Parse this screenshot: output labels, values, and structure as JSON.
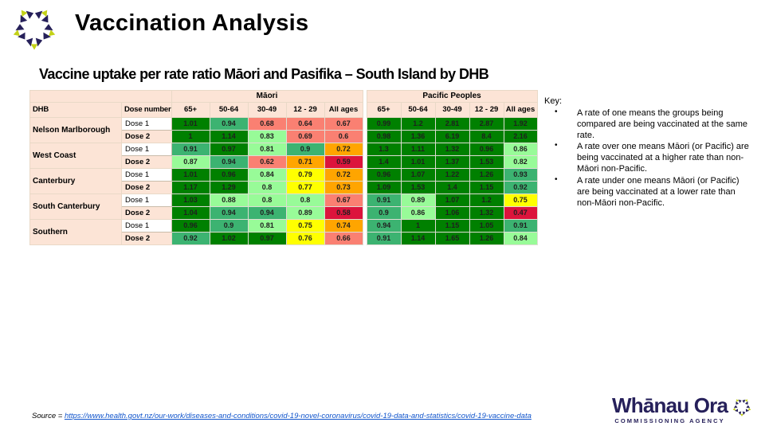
{
  "slide": {
    "title": "Vaccination Analysis",
    "subtitle": "Vaccine uptake per rate ratio Māori and Pasifika – South Island by DHB"
  },
  "chart_data": {
    "type": "heatmap",
    "title": "Vaccine uptake per rate ratio Māori and Pasifika – South Island by DHB",
    "dhb_header": "DHB",
    "dose_header": "Dose number",
    "age_headers": [
      "65+",
      "50-64",
      "30-49",
      "12 - 29",
      "All ages"
    ],
    "groups": [
      {
        "name": "Māori"
      },
      {
        "name": "Pacific Peoples"
      }
    ],
    "rows": [
      {
        "dhb": "Nelson Marlborough",
        "dose": "Dose 1",
        "maori": [
          "1.01",
          "0.94",
          "0.68",
          "0.64",
          "0.67"
        ],
        "pacific": [
          "0.99",
          "1.2",
          "2.81",
          "2.87",
          "1.92"
        ]
      },
      {
        "dose": "Dose 2",
        "maori": [
          "1",
          "1.14",
          "0.83",
          "0.69",
          "0.6"
        ],
        "pacific": [
          "0.98",
          "1.36",
          "6.19",
          "8.4",
          "2.16"
        ]
      },
      {
        "dhb": "West Coast",
        "dose": "Dose 1",
        "maori": [
          "0.91",
          "0.97",
          "0.81",
          "0.9",
          "0.72"
        ],
        "pacific": [
          "1.3",
          "1.11",
          "1.32",
          "0.96",
          "0.86"
        ]
      },
      {
        "dose": "Dose 2",
        "maori": [
          "0.87",
          "0.94",
          "0.62",
          "0.71",
          "0.59"
        ],
        "pacific": [
          "1.4",
          "1.01",
          "1.37",
          "1.53",
          "0.82"
        ]
      },
      {
        "dhb": "Canterbury",
        "dose": "Dose 1",
        "maori": [
          "1.01",
          "0.96",
          "0.84",
          "0.79",
          "0.72"
        ],
        "pacific": [
          "0.96",
          "1.07",
          "1.22",
          "1.26",
          "0.93"
        ]
      },
      {
        "dose": "Dose 2",
        "maori": [
          "1.17",
          "1.29",
          "0.8",
          "0.77",
          "0.73"
        ],
        "pacific": [
          "1.09",
          "1.53",
          "1.4",
          "1.15",
          "0.92"
        ]
      },
      {
        "dhb": "South Canterbury",
        "dose": "Dose 1",
        "maori": [
          "1.03",
          "0.88",
          "0.8",
          "0.8",
          "0.67"
        ],
        "pacific": [
          "0.91",
          "0.89",
          "1.07",
          "1.2",
          "0.75"
        ]
      },
      {
        "dose": "Dose 2",
        "maori": [
          "1.04",
          "0.94",
          "0.94",
          "0.89",
          "0.58"
        ],
        "pacific": [
          "0.9",
          "0.86",
          "1.06",
          "1.32",
          "0.47"
        ]
      },
      {
        "dhb": "Southern",
        "dose": "Dose 1",
        "maori": [
          "0.96",
          "0.9",
          "0.81",
          "0.75",
          "0.74"
        ],
        "pacific": [
          "0.94",
          "1",
          "1.15",
          "1.05",
          "0.91"
        ]
      },
      {
        "dose": "Dose 2",
        "maori": [
          "0.92",
          "1.02",
          "0.97",
          "0.76",
          "0.66"
        ],
        "pacific": [
          "0.91",
          "1.14",
          "1.65",
          "1.26",
          "0.84"
        ]
      }
    ],
    "color_scale": [
      {
        "min": 0.95,
        "color": "#008000"
      },
      {
        "min": 0.9,
        "color": "#3CB371"
      },
      {
        "min": 0.8,
        "color": "#98FB98"
      },
      {
        "min": 0.75,
        "color": "#FFFF00"
      },
      {
        "min": 0.7,
        "color": "#FFA500"
      },
      {
        "min": 0.6,
        "color": "#FA8072"
      },
      {
        "min": 0.0,
        "color": "#DC143C"
      }
    ]
  },
  "key": {
    "label": "Key:",
    "bullets": [
      "A rate of one means the groups being compared are being vaccinated at the same rate.",
      "A rate over one means Māori (or Pacific) are being vaccinated at a higher rate than non-Māori non-Pacific.",
      "A rate under one means Māori (or Pacific) are being vaccinated at a lower rate than non-Māori non-Pacific."
    ],
    "bullet_glyph": "•"
  },
  "source": {
    "label": "Source = ",
    "url": "https://www.health.govt.nz/our-work/diseases-and-conditions/covid-19-novel-coronavirus/covid-19-data-and-statistics/covid-19-vaccine-data"
  },
  "footer_logo": {
    "name": "Whānau Ora",
    "tagline": "COMMISSIONING AGENCY"
  },
  "icons": {
    "logo_mark": "whanau-ora-pentagon-mark"
  },
  "colors": {
    "peach": "#FCE4D6",
    "brand_navy": "#26205a",
    "brand_green": "#c3d117",
    "link_blue": "#1155CC"
  }
}
